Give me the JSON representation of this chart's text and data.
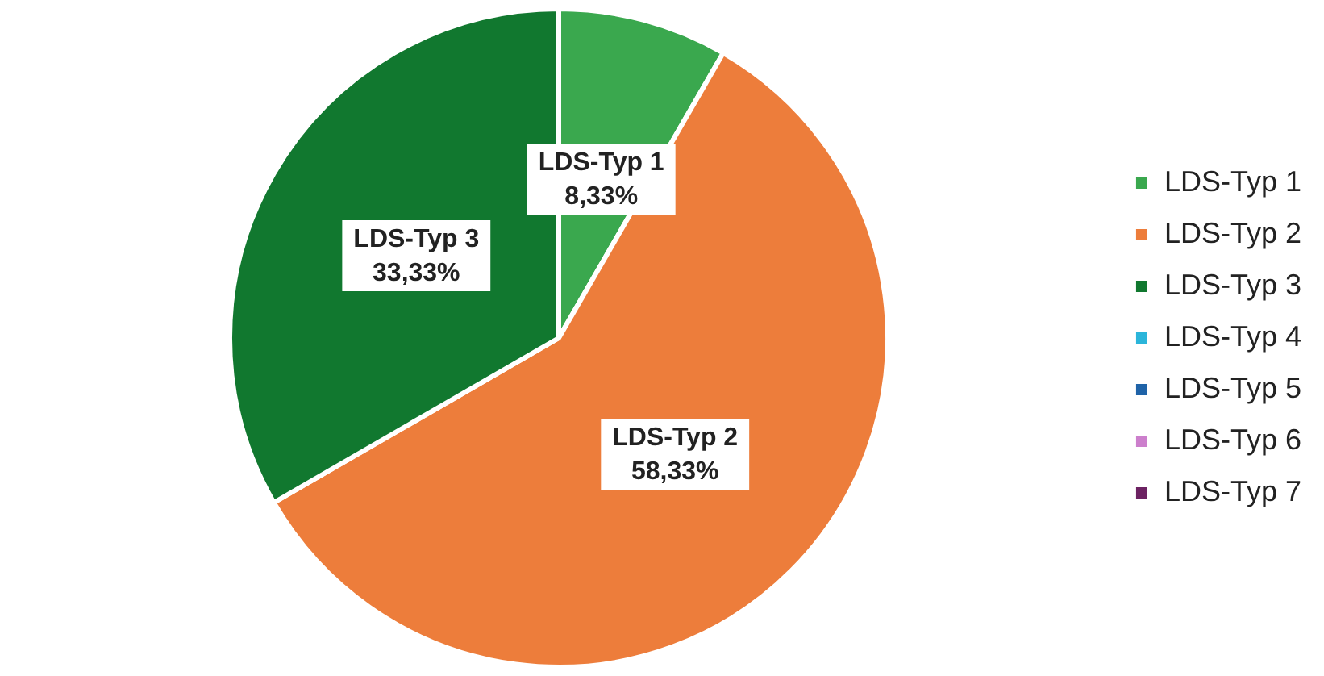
{
  "chart_data": {
    "type": "pie",
    "categories": [
      "LDS-Typ 1",
      "LDS-Typ 2",
      "LDS-Typ 3",
      "LDS-Typ 4",
      "LDS-Typ 5",
      "LDS-Typ 6",
      "LDS-Typ 7"
    ],
    "values": [
      8.33,
      58.33,
      33.33,
      0,
      0,
      0,
      0
    ],
    "colors": [
      "#3aa84e",
      "#ed7d3b",
      "#11782f",
      "#2bb5da",
      "#1f63a8",
      "#cc7fcc",
      "#6c2262"
    ],
    "value_labels": [
      "8,33%",
      "58,33%",
      "33,33%",
      null,
      null,
      null,
      null
    ],
    "legend": "right"
  }
}
